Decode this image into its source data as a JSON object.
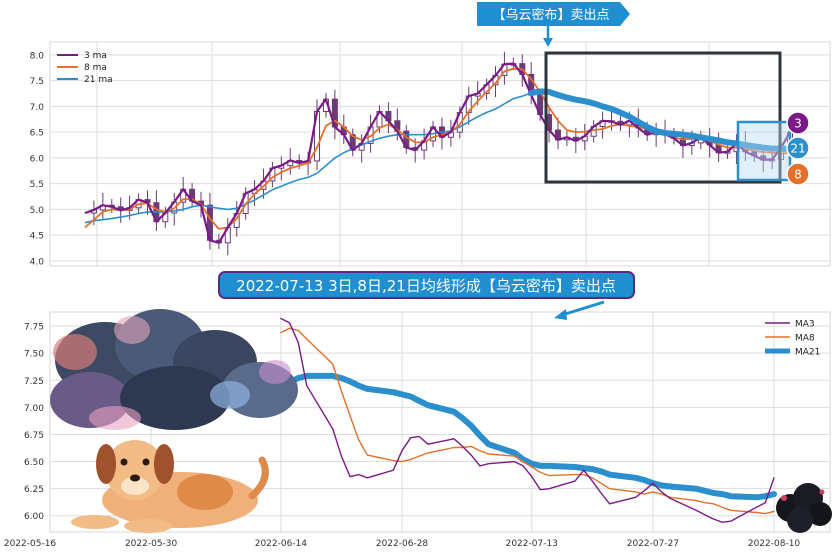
{
  "colors": {
    "ma3": "#7b1a86",
    "ma8": "#e4702a",
    "ma21": "#2b8fce",
    "candle": "#6b3a78",
    "grid": "#dddddd",
    "banner_bg": "#1f8fd0",
    "banner_border": "#5b2a86",
    "frame": "#2f343a"
  },
  "top_banner": {
    "text": "【乌云密布】卖出点"
  },
  "mid_banner": {
    "text": "2022-07-13 3日,8日,21日均线形成【乌云密布】卖出点"
  },
  "badges": [
    "3",
    "21",
    "8"
  ],
  "icons": [
    "storm-cloud-icon",
    "dog-icon",
    "black-cloud-icon",
    "down-arrow-icon"
  ],
  "chart_data": [
    {
      "type": "line",
      "series": [
        {
          "name": "3 ma",
          "values": [
            4.93,
            4.99,
            5.08,
            5.05,
            4.98,
            5.03,
            5.19,
            5.13,
            4.76,
            4.93,
            5.14,
            5.39,
            5.16,
            5.08,
            4.4,
            4.35,
            4.65,
            4.92,
            5.31,
            5.39,
            5.55,
            5.8,
            5.85,
            5.95,
            5.9,
            5.94,
            6.9,
            7.14,
            6.6,
            6.45,
            6.15,
            6.28,
            6.6,
            6.9,
            6.72,
            6.52,
            6.2,
            6.15,
            6.33,
            6.6,
            6.4,
            6.5,
            6.88,
            7.2,
            7.25,
            7.42,
            7.6,
            7.82,
            7.83,
            7.62,
            7.22,
            6.84,
            6.54,
            6.35,
            6.4,
            6.33,
            6.42,
            6.61,
            6.72,
            6.71,
            6.64,
            6.72,
            6.58,
            6.45,
            6.5,
            6.46,
            6.38,
            6.24,
            6.29,
            6.4,
            6.25,
            6.1,
            6.12,
            6.28,
            6.12,
            6.04,
            5.96,
            5.97,
            6.2,
            6.5
          ]
        },
        {
          "name": "8 ma",
          "values": [
            4.65,
            4.8,
            4.95,
            5.0,
            4.98,
            5.0,
            5.1,
            5.12,
            5.0,
            4.95,
            5.02,
            5.2,
            5.2,
            5.1,
            4.82,
            4.62,
            4.65,
            4.82,
            5.1,
            5.3,
            5.45,
            5.62,
            5.72,
            5.8,
            5.85,
            5.9,
            6.2,
            6.62,
            6.72,
            6.6,
            6.42,
            6.35,
            6.42,
            6.58,
            6.65,
            6.55,
            6.4,
            6.3,
            6.3,
            6.4,
            6.45,
            6.5,
            6.65,
            6.9,
            7.1,
            7.28,
            7.45,
            7.68,
            7.73,
            7.72,
            7.53,
            7.28,
            6.98,
            6.72,
            6.54,
            6.5,
            6.51,
            6.54,
            6.56,
            6.62,
            6.65,
            6.62,
            6.6,
            6.56,
            6.5,
            6.45,
            6.39,
            6.36,
            6.37,
            6.36,
            6.33,
            6.26,
            6.2,
            6.2,
            6.18,
            6.14,
            6.11,
            6.1,
            6.08,
            6.1
          ]
        },
        {
          "name": "21 ma",
          "values": [
            4.74,
            4.78,
            4.8,
            4.82,
            4.85,
            4.88,
            4.92,
            4.95,
            4.95,
            4.95,
            4.97,
            5.0,
            5.05,
            5.08,
            5.05,
            5.02,
            5.0,
            5.02,
            5.1,
            5.18,
            5.28,
            5.38,
            5.45,
            5.52,
            5.58,
            5.62,
            5.7,
            5.85,
            6.0,
            6.1,
            6.18,
            6.25,
            6.32,
            6.38,
            6.42,
            6.45,
            6.45,
            6.45,
            6.45,
            6.47,
            6.5,
            6.52,
            6.6,
            6.7,
            6.8,
            6.88,
            6.95,
            7.05,
            7.15,
            7.2,
            7.26,
            7.29,
            7.28,
            7.22,
            7.17,
            7.13,
            7.1,
            7.06,
            7.0,
            6.95,
            6.88,
            6.8,
            6.7,
            6.6,
            6.52,
            6.48,
            6.47,
            6.45,
            6.43,
            6.4,
            6.37,
            6.34,
            6.3,
            6.28,
            6.25,
            6.22,
            6.2,
            6.18,
            6.18,
            6.17
          ]
        }
      ],
      "legend": "top-left",
      "ylim": [
        3.9,
        8.25
      ],
      "yticks": [
        "4.0",
        "4.5",
        "5.0",
        "5.5",
        "6.0",
        "6.5",
        "7.0",
        "7.5",
        "8.0"
      ],
      "grid": true,
      "candlesticks": true
    },
    {
      "type": "line",
      "x": [
        "2022-06-14",
        "2022-06-15",
        "2022-06-16",
        "2022-06-17",
        "2022-06-20",
        "2022-06-21",
        "2022-06-22",
        "2022-06-23",
        "2022-06-24",
        "2022-06-27",
        "2022-06-28",
        "2022-06-29",
        "2022-06-30",
        "2022-07-01",
        "2022-07-04",
        "2022-07-05",
        "2022-07-06",
        "2022-07-07",
        "2022-07-08",
        "2022-07-11",
        "2022-07-12",
        "2022-07-13",
        "2022-07-14",
        "2022-07-15",
        "2022-07-18",
        "2022-07-19",
        "2022-07-20",
        "2022-07-21",
        "2022-07-22",
        "2022-07-25",
        "2022-07-26",
        "2022-07-27",
        "2022-07-28",
        "2022-07-29",
        "2022-08-01",
        "2022-08-02",
        "2022-08-03",
        "2022-08-04",
        "2022-08-05",
        "2022-08-08",
        "2022-08-09",
        "2022-08-10"
      ],
      "series": [
        {
          "name": "MA3",
          "values": [
            7.82,
            7.78,
            7.6,
            7.2,
            6.8,
            6.55,
            6.36,
            6.38,
            6.35,
            6.42,
            6.6,
            6.72,
            6.73,
            6.66,
            6.71,
            6.64,
            6.56,
            6.46,
            6.48,
            6.5,
            6.46,
            6.36,
            6.24,
            6.25,
            6.32,
            6.42,
            6.32,
            6.21,
            6.11,
            6.17,
            6.23,
            6.3,
            6.22,
            6.16,
            6.05,
            6.01,
            5.97,
            5.94,
            5.95,
            6.08,
            6.12,
            6.35
          ]
        },
        {
          "name": "MA8",
          "values": [
            7.69,
            7.73,
            7.71,
            7.63,
            7.4,
            7.15,
            6.92,
            6.7,
            6.56,
            6.51,
            6.5,
            6.52,
            6.55,
            6.58,
            6.63,
            6.63,
            6.64,
            6.6,
            6.57,
            6.55,
            6.5,
            6.45,
            6.4,
            6.37,
            6.38,
            6.38,
            6.35,
            6.3,
            6.25,
            6.22,
            6.2,
            6.22,
            6.2,
            6.17,
            6.14,
            6.12,
            6.11,
            6.08,
            6.05,
            6.03,
            6.02,
            6.04
          ]
        },
        {
          "name": "MA21",
          "values": [
            7.17,
            7.23,
            7.27,
            7.29,
            7.29,
            7.27,
            7.24,
            7.2,
            7.17,
            7.14,
            7.12,
            7.1,
            7.06,
            7.02,
            6.96,
            6.9,
            6.83,
            6.74,
            6.66,
            6.58,
            6.52,
            6.48,
            6.46,
            6.46,
            6.45,
            6.44,
            6.43,
            6.41,
            6.38,
            6.35,
            6.33,
            6.3,
            6.28,
            6.27,
            6.25,
            6.23,
            6.21,
            6.2,
            6.18,
            6.17,
            6.18,
            6.2
          ]
        }
      ],
      "legend": "top-right",
      "ylim": [
        5.85,
        7.88
      ],
      "yticks": [
        "6.00",
        "6.25",
        "6.50",
        "6.75",
        "7.00",
        "7.25",
        "7.50",
        "7.75"
      ],
      "xticks": [
        "2022-05-16",
        "2022-05-30",
        "2022-06-14",
        "2022-06-28",
        "2022-07-13",
        "2022-07-27",
        "2022-08-10"
      ],
      "grid": true
    }
  ]
}
